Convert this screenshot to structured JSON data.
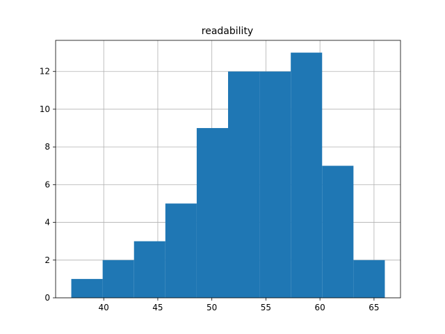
{
  "chart_data": {
    "type": "bar",
    "title": "readability",
    "xlabel": "",
    "ylabel": "",
    "xlim": [
      35.55,
      67.45
    ],
    "ylim": [
      0,
      13.65
    ],
    "grid": true,
    "bar_color": "#1f77b4",
    "x_ticks": [
      40,
      45,
      50,
      55,
      60,
      65
    ],
    "y_ticks": [
      0,
      2,
      4,
      6,
      8,
      10,
      12
    ],
    "bins": [
      {
        "x0": 37.0,
        "x1": 39.9,
        "count": 1
      },
      {
        "x0": 39.9,
        "x1": 42.8,
        "count": 2
      },
      {
        "x0": 42.8,
        "x1": 45.7,
        "count": 3
      },
      {
        "x0": 45.7,
        "x1": 48.6,
        "count": 5
      },
      {
        "x0": 48.6,
        "x1": 51.5,
        "count": 9
      },
      {
        "x0": 51.5,
        "x1": 54.4,
        "count": 12
      },
      {
        "x0": 54.4,
        "x1": 57.3,
        "count": 12
      },
      {
        "x0": 57.3,
        "x1": 60.2,
        "count": 13
      },
      {
        "x0": 60.2,
        "x1": 63.1,
        "count": 7
      },
      {
        "x0": 63.1,
        "x1": 66.0,
        "count": 2
      }
    ]
  }
}
